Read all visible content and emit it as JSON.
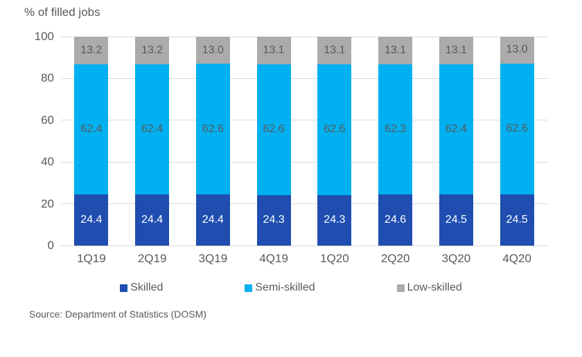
{
  "chart_data": {
    "type": "bar",
    "stacked": true,
    "title": "% of filled jobs",
    "categories": [
      "1Q19",
      "2Q19",
      "3Q19",
      "4Q19",
      "1Q20",
      "2Q20",
      "3Q20",
      "4Q20"
    ],
    "series": [
      {
        "name": "Skilled",
        "color": "#1f4eb0",
        "label_color": "#ffffff",
        "values": [
          24.4,
          24.4,
          24.4,
          24.3,
          24.3,
          24.6,
          24.5,
          24.5
        ]
      },
      {
        "name": "Semi-skilled",
        "color": "#00b0f0",
        "label_color": "#595959",
        "values": [
          62.4,
          62.4,
          62.6,
          62.6,
          62.6,
          62.3,
          62.4,
          62.6
        ]
      },
      {
        "name": "Low-skilled",
        "color": "#ababab",
        "label_color": "#595959",
        "values": [
          13.2,
          13.2,
          13.0,
          13.1,
          13.1,
          13.1,
          13.1,
          13.0
        ]
      }
    ],
    "ylim": [
      0,
      100
    ],
    "y_ticks": [
      0,
      20,
      40,
      60,
      80,
      100
    ],
    "grid": true,
    "gridline_color": "#d9d9d9",
    "legend_position": "bottom",
    "label_decimals": 1
  },
  "source_note": "Source: Department of Statistics (DOSM)"
}
